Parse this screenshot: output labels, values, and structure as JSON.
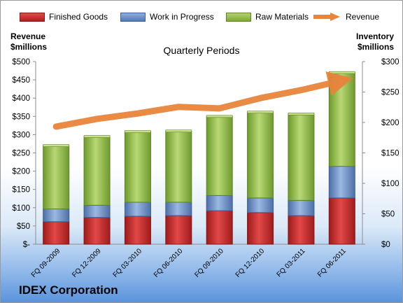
{
  "title": "IDEX Corporation",
  "subtitle": "Quarterly Periods",
  "left_axis_title": [
    "Revenue",
    "$millions"
  ],
  "right_axis_title": [
    "Inventory",
    "$millions"
  ],
  "legend": [
    {
      "key": "finished",
      "label": "Finished Goods"
    },
    {
      "key": "wip",
      "label": "Work in Progress"
    },
    {
      "key": "raw",
      "label": "Raw Materials"
    },
    {
      "key": "revenue",
      "label": "Revenue"
    }
  ],
  "colors": {
    "finished": "#c0282a",
    "wip": "#6f8fc6",
    "raw": "#97bd4c",
    "revenue": "#e8843c"
  },
  "chart_data": {
    "type": "bar",
    "stacked": true,
    "categories": [
      "FQ 09-2009",
      "FQ 12-2009",
      "FQ 03-2010",
      "FQ 06-2010",
      "FQ 09-2010",
      "FQ 12-2010",
      "FQ 03-2011",
      "FQ 06-2011"
    ],
    "left_axis": {
      "label": "Revenue $millions",
      "ylim": [
        0,
        500
      ],
      "ticks": [
        "$-",
        "$50",
        "$100",
        "$150",
        "$200",
        "$250",
        "$300",
        "$350",
        "$400",
        "$450",
        "$500"
      ]
    },
    "right_axis": {
      "label": "Inventory $millions",
      "ylim": [
        0,
        300
      ],
      "ticks": [
        "$0",
        "$50",
        "$100",
        "$150",
        "$200",
        "$250",
        "$300"
      ]
    },
    "series": [
      {
        "name": "Finished Goods",
        "axis": "right",
        "values": [
          37,
          44,
          46,
          47,
          55,
          52,
          47,
          76
        ]
      },
      {
        "name": "Work in Progress",
        "axis": "right",
        "values": [
          21,
          20,
          23,
          22,
          25,
          24,
          25,
          52
        ]
      },
      {
        "name": "Raw Materials",
        "axis": "right",
        "values": [
          104,
          113,
          116,
          117,
          130,
          141,
          142,
          154
        ]
      },
      {
        "name": "Revenue",
        "axis": "left",
        "type": "line",
        "values": [
          322,
          343,
          358,
          376,
          372,
          400,
          422,
          448
        ]
      }
    ],
    "grid": false,
    "legend_position": "top"
  }
}
